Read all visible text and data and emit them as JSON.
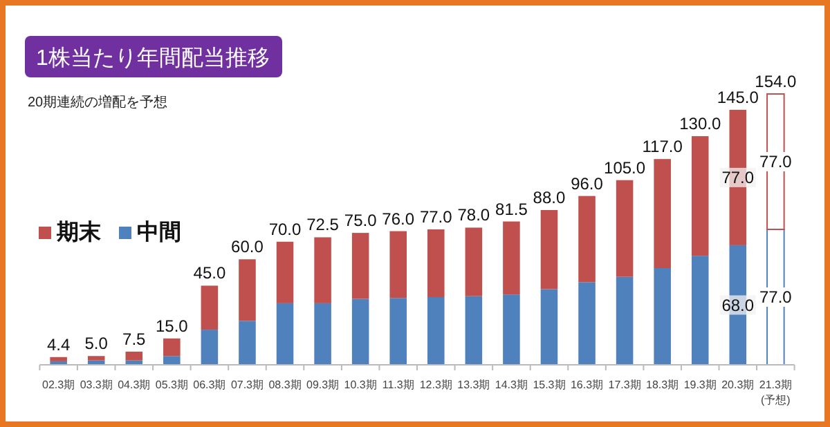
{
  "chart_data": {
    "type": "bar",
    "title": "1株当たり年間配当推移",
    "subtitle": "20期連続の増配を予想",
    "stacked": true,
    "legend": "left",
    "categories": [
      "02.3期",
      "03.3期",
      "04.3期",
      "05.3期",
      "06.3期",
      "07.3期",
      "08.3期",
      "09.3期",
      "10.3期",
      "11.3期",
      "12.3期",
      "13.3期",
      "14.3期",
      "15.3期",
      "16.3期",
      "17.3期",
      "18.3期",
      "19.3期",
      "20.3期",
      "21.3期\n(予想)"
    ],
    "series": [
      {
        "name": "中間",
        "color": "#4f81bd",
        "colors": [
          "#4f81bd",
          "#4f81bd",
          "#4f81bd",
          "#4f81bd",
          "#4f81bd",
          "#4f81bd",
          "#4f81bd",
          "#4f81bd",
          "#4f81bd",
          "#4f81bd",
          "#4f81bd",
          "#4f81bd",
          "#4f81bd",
          "#4f81bd",
          "#4f81bd",
          "#4f81bd",
          "#4f81bd",
          "#4f81bd",
          "#4f81bd",
          "#ffffff"
        ],
        "values": [
          2.0,
          2.5,
          2.5,
          5.0,
          20.0,
          25.0,
          35.0,
          35.0,
          37.5,
          38.0,
          38.5,
          39.0,
          40.0,
          43.0,
          47.0,
          50.0,
          55.0,
          62.0,
          68.0,
          77.0
        ],
        "value_labels": [
          null,
          null,
          null,
          null,
          null,
          null,
          null,
          null,
          null,
          null,
          null,
          null,
          null,
          null,
          null,
          null,
          null,
          null,
          "68.0",
          "77.0"
        ]
      },
      {
        "name": "期末",
        "color": "#c0504d",
        "colors": [
          "#c0504d",
          "#c0504d",
          "#c0504d",
          "#c0504d",
          "#c0504d",
          "#c0504d",
          "#c0504d",
          "#c0504d",
          "#c0504d",
          "#c0504d",
          "#c0504d",
          "#c0504d",
          "#c0504d",
          "#c0504d",
          "#c0504d",
          "#c0504d",
          "#c0504d",
          "#c0504d",
          "#c0504d",
          "#ffffff"
        ],
        "values": [
          2.4,
          2.5,
          5.0,
          10.0,
          25.0,
          35.0,
          35.0,
          37.5,
          37.5,
          38.0,
          38.5,
          39.0,
          41.5,
          45.0,
          49.0,
          55.0,
          62.0,
          68.0,
          77.0,
          77.0
        ],
        "value_labels": [
          null,
          null,
          null,
          null,
          null,
          null,
          null,
          null,
          null,
          null,
          null,
          null,
          null,
          null,
          null,
          null,
          null,
          null,
          "77.0",
          "77.0"
        ]
      }
    ],
    "totals": [
      "4.4",
      "5.0",
      "7.5",
      "15.0",
      "45.0",
      "60.0",
      "70.0",
      "72.5",
      "75.0",
      "76.0",
      "77.0",
      "78.0",
      "81.5",
      "88.0",
      "96.0",
      "105.0",
      "117.0",
      "130.0",
      "145.0",
      "154.0"
    ]
  }
}
